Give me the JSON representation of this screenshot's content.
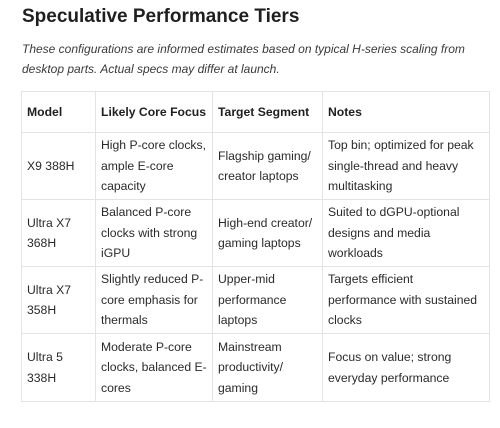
{
  "heading": "Speculative Performance Tiers",
  "note": "These configurations are informed estimates based on typical H-series scaling from desktop parts. Actual specs may differ at launch.",
  "table": {
    "headers": [
      "Model",
      "Likely Core Focus",
      "Target Segment",
      "Notes"
    ],
    "rows": [
      {
        "model": "X9 388H",
        "core_focus": "High P-core clocks, ample E-core capacity",
        "target_segment": "Flagship gaming/ creator laptops",
        "notes": "Top bin; optimized for peak single-thread and heavy multitasking"
      },
      {
        "model": "Ultra X7 368H",
        "core_focus": "Balanced P-core clocks with strong iGPU",
        "target_segment": "High-end creator/ gaming laptops",
        "notes": "Suited to dGPU-optional designs and media workloads"
      },
      {
        "model": "Ultra X7 358H",
        "core_focus": "Slightly reduced P-core emphasis for thermals",
        "target_segment": "Upper-mid performance laptops",
        "notes": "Targets efficient performance with sustained clocks"
      },
      {
        "model": "Ultra 5 338H",
        "core_focus": "Moderate P-core clocks, balanced E-cores",
        "target_segment": "Mainstream productivity/ gaming",
        "notes": "Focus on value; strong everyday performance"
      }
    ]
  }
}
